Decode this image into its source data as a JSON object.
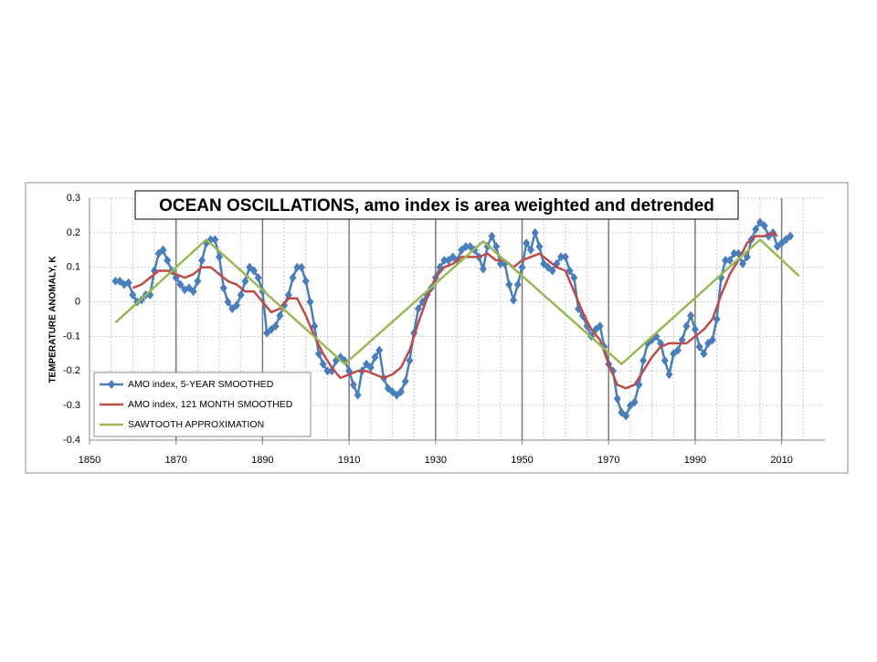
{
  "chart_data": {
    "type": "line",
    "title": "OCEAN OSCILLATIONS, amo index is area weighted and detrended",
    "y_label": "TEMPERATURE ANOMALY, K",
    "xlim": [
      1850,
      2020
    ],
    "xticks": [
      1850,
      1870,
      1890,
      1910,
      1930,
      1950,
      1970,
      1990,
      2010
    ],
    "ylim": [
      -0.4,
      0.3
    ],
    "yticks": [
      -0.4,
      -0.3,
      -0.2,
      -0.1,
      0,
      0.1,
      0.2,
      0.3
    ],
    "grid": true,
    "legend": "lower left",
    "series": [
      {
        "name": "AMO index, 5-YEAR SMOOTHED",
        "color": "#4a7ebb",
        "marker": "diamond",
        "x": [
          1856,
          1857,
          1858,
          1859,
          1860,
          1861,
          1862,
          1863,
          1864,
          1865,
          1866,
          1867,
          1868,
          1869,
          1870,
          1871,
          1872,
          1873,
          1874,
          1875,
          1876,
          1877,
          1878,
          1879,
          1880,
          1881,
          1882,
          1883,
          1884,
          1885,
          1886,
          1887,
          1888,
          1889,
          1890,
          1891,
          1892,
          1893,
          1894,
          1895,
          1896,
          1897,
          1898,
          1899,
          1900,
          1901,
          1902,
          1903,
          1904,
          1905,
          1906,
          1907,
          1908,
          1909,
          1910,
          1911,
          1912,
          1913,
          1914,
          1915,
          1916,
          1917,
          1918,
          1919,
          1920,
          1921,
          1922,
          1923,
          1924,
          1925,
          1926,
          1927,
          1928,
          1929,
          1930,
          1931,
          1932,
          1933,
          1934,
          1935,
          1936,
          1937,
          1938,
          1939,
          1940,
          1941,
          1942,
          1943,
          1944,
          1945,
          1946,
          1947,
          1948,
          1949,
          1950,
          1951,
          1952,
          1953,
          1954,
          1955,
          1956,
          1957,
          1958,
          1959,
          1960,
          1961,
          1962,
          1963,
          1964,
          1965,
          1966,
          1967,
          1968,
          1969,
          1970,
          1971,
          1972,
          1973,
          1974,
          1975,
          1976,
          1977,
          1978,
          1979,
          1980,
          1981,
          1982,
          1983,
          1984,
          1985,
          1986,
          1987,
          1988,
          1989,
          1990,
          1991,
          1992,
          1993,
          1994,
          1995,
          1996,
          1997,
          1998,
          1999,
          2000,
          2001,
          2002,
          2003,
          2004,
          2005,
          2006,
          2007,
          2008,
          2009,
          2010,
          2011,
          2012
        ],
        "values": [
          0.06,
          0.06,
          0.05,
          0.055,
          0.02,
          0.0,
          0.005,
          0.02,
          0.02,
          0.09,
          0.14,
          0.15,
          0.12,
          0.09,
          0.07,
          0.05,
          0.035,
          0.04,
          0.03,
          0.06,
          0.12,
          0.17,
          0.18,
          0.18,
          0.13,
          0.04,
          0.0,
          -0.02,
          -0.01,
          0.02,
          0.06,
          0.1,
          0.09,
          0.07,
          0.03,
          -0.09,
          -0.08,
          -0.07,
          -0.04,
          -0.01,
          0.02,
          0.07,
          0.1,
          0.1,
          0.06,
          0.0,
          -0.07,
          -0.15,
          -0.18,
          -0.2,
          -0.2,
          -0.17,
          -0.16,
          -0.17,
          -0.2,
          -0.24,
          -0.27,
          -0.2,
          -0.18,
          -0.19,
          -0.16,
          -0.14,
          -0.22,
          -0.25,
          -0.26,
          -0.27,
          -0.26,
          -0.23,
          -0.17,
          -0.09,
          -0.02,
          0.0,
          0.02,
          0.04,
          0.07,
          0.1,
          0.12,
          0.12,
          0.13,
          0.12,
          0.15,
          0.16,
          0.16,
          0.15,
          0.13,
          0.095,
          0.16,
          0.19,
          0.16,
          0.11,
          0.11,
          0.05,
          0.005,
          0.05,
          0.1,
          0.17,
          0.15,
          0.2,
          0.16,
          0.11,
          0.1,
          0.09,
          0.11,
          0.13,
          0.13,
          0.09,
          0.07,
          -0.02,
          -0.04,
          -0.07,
          -0.1,
          -0.08,
          -0.07,
          -0.13,
          -0.18,
          -0.2,
          -0.28,
          -0.32,
          -0.33,
          -0.3,
          -0.29,
          -0.24,
          -0.17,
          -0.12,
          -0.11,
          -0.1,
          -0.12,
          -0.17,
          -0.21,
          -0.15,
          -0.14,
          -0.11,
          -0.07,
          -0.04,
          -0.08,
          -0.13,
          -0.15,
          -0.12,
          -0.11,
          -0.05,
          0.07,
          0.12,
          0.12,
          0.14,
          0.14,
          0.11,
          0.13,
          0.18,
          0.21,
          0.23,
          0.22,
          0.19,
          0.2,
          0.16,
          0.17,
          0.18,
          0.19
        ]
      },
      {
        "name": "AMO index, 121 MONTH SMOOTHED",
        "color": "#be4b48",
        "x": [
          1860,
          1862,
          1864,
          1866,
          1868,
          1870,
          1872,
          1874,
          1876,
          1878,
          1880,
          1882,
          1884,
          1886,
          1888,
          1890,
          1892,
          1894,
          1896,
          1898,
          1900,
          1902,
          1904,
          1906,
          1908,
          1910,
          1912,
          1914,
          1916,
          1918,
          1920,
          1922,
          1924,
          1926,
          1928,
          1930,
          1932,
          1934,
          1936,
          1938,
          1940,
          1942,
          1944,
          1946,
          1948,
          1950,
          1952,
          1954,
          1956,
          1958,
          1960,
          1962,
          1964,
          1966,
          1968,
          1970,
          1972,
          1974,
          1976,
          1978,
          1980,
          1982,
          1984,
          1986,
          1988,
          1990,
          1992,
          1994,
          1996,
          1998,
          2000,
          2002,
          2004,
          2006,
          2008,
          2009
        ],
        "values": [
          0.04,
          0.05,
          0.07,
          0.09,
          0.09,
          0.08,
          0.07,
          0.08,
          0.1,
          0.1,
          0.08,
          0.06,
          0.05,
          0.03,
          0.03,
          0.0,
          -0.03,
          -0.02,
          0.01,
          0.01,
          -0.04,
          -0.1,
          -0.15,
          -0.19,
          -0.22,
          -0.21,
          -0.2,
          -0.2,
          -0.21,
          -0.22,
          -0.21,
          -0.19,
          -0.14,
          -0.06,
          0.01,
          0.07,
          0.1,
          0.11,
          0.13,
          0.13,
          0.13,
          0.14,
          0.12,
          0.12,
          0.1,
          0.12,
          0.13,
          0.14,
          0.12,
          0.1,
          0.09,
          0.03,
          -0.03,
          -0.08,
          -0.11,
          -0.18,
          -0.24,
          -0.25,
          -0.24,
          -0.2,
          -0.16,
          -0.13,
          -0.12,
          -0.12,
          -0.12,
          -0.1,
          -0.08,
          -0.05,
          0.02,
          0.08,
          0.12,
          0.17,
          0.19,
          0.19,
          0.2,
          0.19
        ]
      },
      {
        "name": "SAWTOOTH APPROXIMATION",
        "color": "#98b954",
        "x": [
          1856,
          1877,
          1909,
          1941,
          1973,
          2005,
          2014
        ],
        "values": [
          -0.06,
          0.18,
          -0.18,
          0.175,
          -0.18,
          0.18,
          0.075
        ]
      }
    ]
  }
}
